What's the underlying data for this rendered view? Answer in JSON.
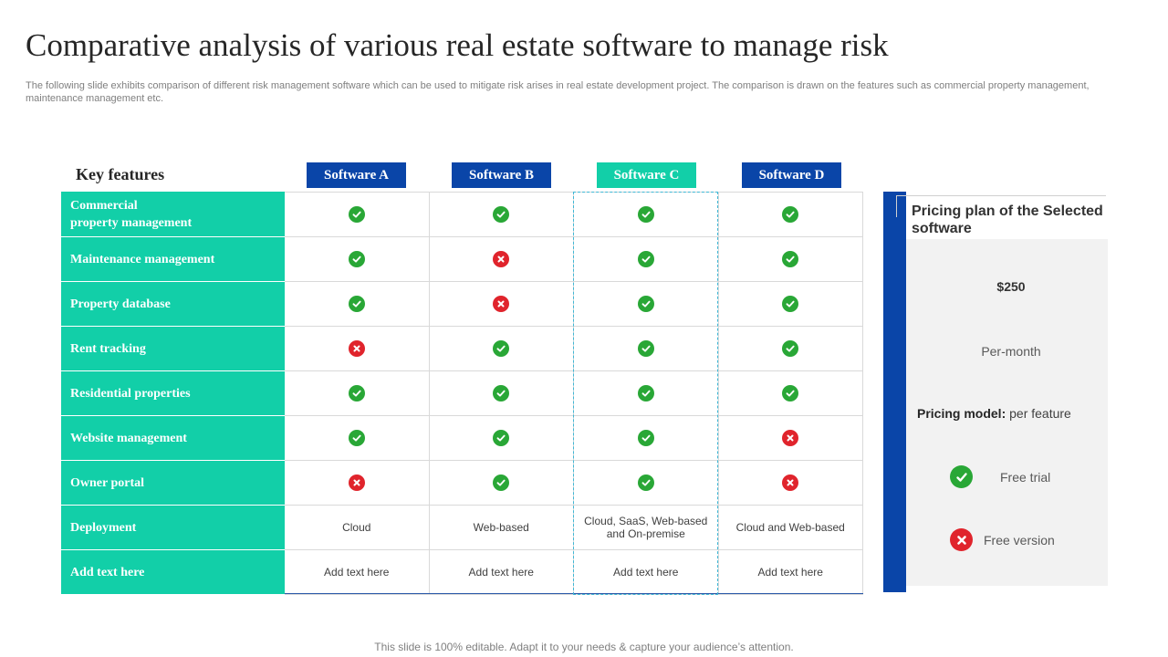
{
  "title": "Comparative analysis of various real estate software to manage risk",
  "subtitle": "The following slide exhibits comparison of different risk management software which can be used to mitigate risk arises in real estate development project. The comparison is drawn on the features such as commercial property management, maintenance management etc.",
  "table": {
    "features_label": "Key features",
    "columns": [
      {
        "label": "Software A",
        "color": "#0a45a8"
      },
      {
        "label": "Software B",
        "color": "#0a45a8"
      },
      {
        "label": "Software C",
        "color": "#12cfa8"
      },
      {
        "label": "Software D",
        "color": "#0a45a8"
      }
    ],
    "rows": [
      {
        "feature": "Commercial\nproperty management",
        "values": [
          true,
          true,
          true,
          true
        ]
      },
      {
        "feature": "Maintenance management",
        "values": [
          true,
          false,
          true,
          true
        ]
      },
      {
        "feature": "Property database",
        "values": [
          true,
          false,
          true,
          true
        ]
      },
      {
        "feature": "Rent tracking",
        "values": [
          false,
          true,
          true,
          true
        ]
      },
      {
        "feature": "Residential properties",
        "values": [
          true,
          true,
          true,
          true
        ]
      },
      {
        "feature": "Website management",
        "values": [
          true,
          true,
          true,
          false
        ]
      },
      {
        "feature": "Owner portal",
        "values": [
          false,
          true,
          true,
          false
        ]
      },
      {
        "feature": "Deployment",
        "values": [
          "Cloud",
          "Web-based",
          "Cloud, SaaS, Web-based and On-premise",
          "Cloud and Web-based"
        ]
      },
      {
        "feature": "Add text here",
        "values": [
          "Add text here",
          "Add text here",
          "Add text here",
          "Add text here"
        ]
      }
    ],
    "highlighted_column": "Software C"
  },
  "pricing": {
    "title": "Pricing plan of the Selected software",
    "price": "$250",
    "period": "Per-month",
    "model_label": "Pricing model:",
    "model_value": "per feature",
    "free_trial": {
      "label": "Free trial",
      "icon": "check-circle-icon",
      "available": true
    },
    "free_version": {
      "label": "Free version",
      "icon": "cross-circle-icon",
      "available": false
    }
  },
  "footer": "This slide is 100% editable. Adapt it to your needs & capture your audience’s attention.",
  "colors": {
    "teal": "#12cfa8",
    "blue": "#0a45a8",
    "check": "#29a736",
    "cross": "#e0242c"
  }
}
